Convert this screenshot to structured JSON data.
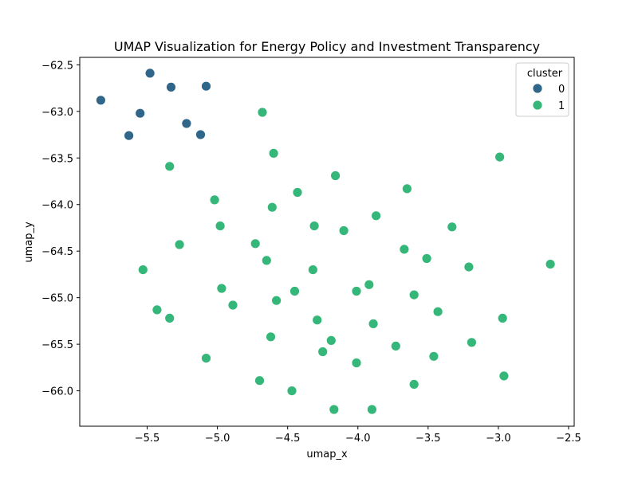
{
  "chart_data": {
    "type": "scatter",
    "title": "UMAP Visualization for Energy Policy and Investment Transparency",
    "xlabel": "umap_x",
    "ylabel": "umap_y",
    "xlim": [
      -5.98,
      -2.46
    ],
    "ylim": [
      -66.38,
      -62.42
    ],
    "xticks": [
      -5.5,
      -5.0,
      -4.5,
      -4.0,
      -3.5,
      -3.0,
      -2.5
    ],
    "xtick_labels": [
      "−5.5",
      "−5.0",
      "−4.5",
      "−4.0",
      "−3.5",
      "−3.0",
      "−2.5"
    ],
    "yticks": [
      -62.5,
      -63.0,
      -63.5,
      -64.0,
      -64.5,
      -65.0,
      -65.5,
      -66.0
    ],
    "ytick_labels": [
      "−62.5",
      "−63.0",
      "−63.5",
      "−64.0",
      "−64.5",
      "−65.0",
      "−65.5",
      "−66.0"
    ],
    "grid": false,
    "legend": {
      "title": "cluster",
      "placement": "top-right"
    },
    "series": [
      {
        "name": "0",
        "color": "#30668a",
        "points": [
          [
            -5.48,
            -62.59
          ],
          [
            -5.33,
            -62.74
          ],
          [
            -5.08,
            -62.73
          ],
          [
            -5.83,
            -62.88
          ],
          [
            -5.55,
            -63.02
          ],
          [
            -5.22,
            -63.13
          ],
          [
            -5.63,
            -63.26
          ],
          [
            -5.12,
            -63.25
          ]
        ]
      },
      {
        "name": "1",
        "color": "#35b779",
        "points": [
          [
            -4.68,
            -63.01
          ],
          [
            -4.6,
            -63.45
          ],
          [
            -2.99,
            -63.49
          ],
          [
            -5.34,
            -63.59
          ],
          [
            -4.16,
            -63.69
          ],
          [
            -4.43,
            -63.87
          ],
          [
            -3.65,
            -63.83
          ],
          [
            -5.02,
            -63.95
          ],
          [
            -4.61,
            -64.03
          ],
          [
            -3.87,
            -64.12
          ],
          [
            -4.98,
            -64.23
          ],
          [
            -4.31,
            -64.23
          ],
          [
            -4.1,
            -64.28
          ],
          [
            -3.33,
            -64.24
          ],
          [
            -5.27,
            -64.43
          ],
          [
            -4.73,
            -64.42
          ],
          [
            -3.67,
            -64.48
          ],
          [
            -3.51,
            -64.58
          ],
          [
            -4.65,
            -64.6
          ],
          [
            -3.21,
            -64.67
          ],
          [
            -2.63,
            -64.64
          ],
          [
            -5.53,
            -64.7
          ],
          [
            -4.32,
            -64.7
          ],
          [
            -4.97,
            -64.9
          ],
          [
            -3.92,
            -64.86
          ],
          [
            -4.45,
            -64.93
          ],
          [
            -4.01,
            -64.93
          ],
          [
            -3.6,
            -64.97
          ],
          [
            -4.58,
            -65.03
          ],
          [
            -4.89,
            -65.08
          ],
          [
            -5.43,
            -65.13
          ],
          [
            -3.43,
            -65.15
          ],
          [
            -5.34,
            -65.22
          ],
          [
            -4.29,
            -65.24
          ],
          [
            -2.97,
            -65.22
          ],
          [
            -3.89,
            -65.28
          ],
          [
            -4.62,
            -65.42
          ],
          [
            -4.19,
            -65.46
          ],
          [
            -3.19,
            -65.48
          ],
          [
            -3.73,
            -65.52
          ],
          [
            -4.25,
            -65.58
          ],
          [
            -3.46,
            -65.63
          ],
          [
            -5.08,
            -65.65
          ],
          [
            -4.01,
            -65.7
          ],
          [
            -2.96,
            -65.84
          ],
          [
            -4.7,
            -65.89
          ],
          [
            -3.6,
            -65.93
          ],
          [
            -4.47,
            -66.0
          ],
          [
            -4.17,
            -66.2
          ],
          [
            -3.9,
            -66.2
          ]
        ]
      }
    ]
  }
}
